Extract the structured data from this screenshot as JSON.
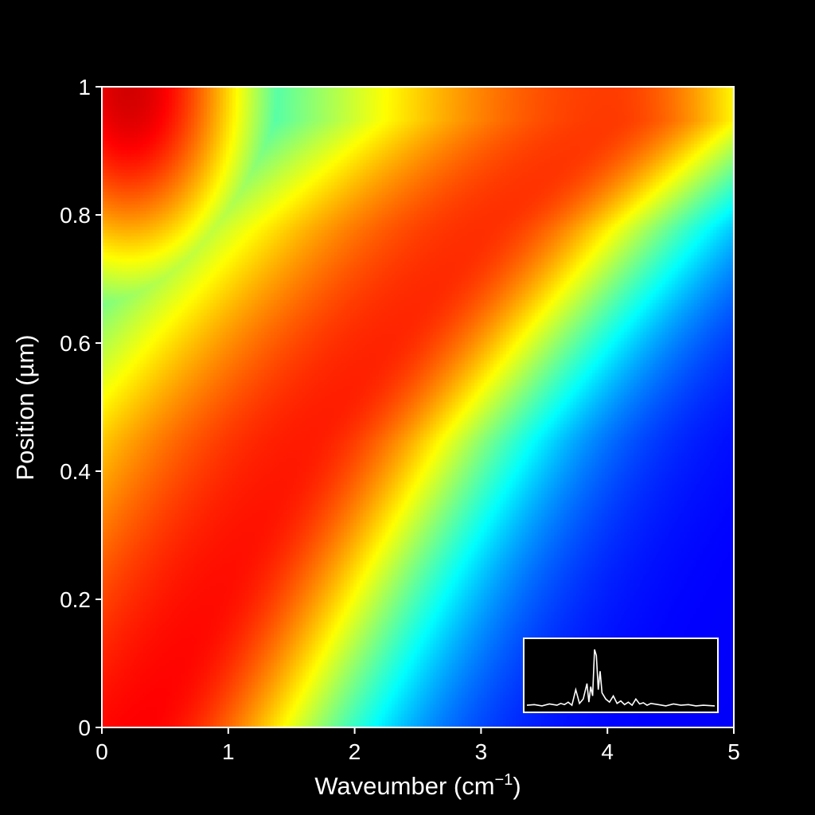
{
  "chart_data": {
    "type": "heatmap",
    "title": "",
    "xlabel": "Waveumber (cm",
    "xlabel_sup": "−1",
    "xlabel_suffix": ")",
    "ylabel": "Position (µm)",
    "xlim": [
      0,
      5
    ],
    "ylim": [
      0,
      1
    ],
    "x_ticks": [
      0,
      1,
      2,
      3,
      4,
      5
    ],
    "x_tick_labels": [
      "0",
      "1",
      "2",
      "3",
      "4",
      "5"
    ],
    "y_ticks": [
      0,
      0.2,
      0.4,
      0.6,
      0.8,
      1
    ],
    "y_tick_labels": [
      "0",
      "0.2",
      "0.4",
      "0.6",
      "0.8",
      "1"
    ],
    "grid": false,
    "colormap": "jet",
    "intensity_ridge": [
      {
        "x": 0.3,
        "y": 0.0
      },
      {
        "x": 1.0,
        "y": 0.25
      },
      {
        "x": 1.6,
        "y": 0.45
      },
      {
        "x": 2.3,
        "y": 0.62
      },
      {
        "x": 3.0,
        "y": 0.78
      },
      {
        "x": 4.0,
        "y": 0.95
      }
    ],
    "corner_peak": {
      "x": 0.2,
      "y": 1.0
    },
    "inset": {
      "type": "line",
      "description_free": true,
      "x": [
        0.0,
        0.04,
        0.08,
        0.12,
        0.16,
        0.18,
        0.2,
        0.22,
        0.24,
        0.26,
        0.28,
        0.3,
        0.32,
        0.33,
        0.34,
        0.35,
        0.36,
        0.37,
        0.38,
        0.39,
        0.4,
        0.42,
        0.44,
        0.46,
        0.48,
        0.5,
        0.52,
        0.54,
        0.56,
        0.58,
        0.6,
        0.62,
        0.64,
        0.66,
        0.7,
        0.74,
        0.78,
        0.82,
        0.86,
        0.9,
        0.94,
        1.0
      ],
      "y": [
        0.05,
        0.06,
        0.04,
        0.07,
        0.05,
        0.08,
        0.06,
        0.1,
        0.05,
        0.3,
        0.08,
        0.15,
        0.4,
        0.1,
        0.35,
        0.2,
        0.95,
        0.85,
        0.3,
        0.6,
        0.25,
        0.15,
        0.1,
        0.2,
        0.08,
        0.12,
        0.06,
        0.1,
        0.05,
        0.15,
        0.07,
        0.09,
        0.05,
        0.08,
        0.06,
        0.04,
        0.07,
        0.05,
        0.06,
        0.04,
        0.05,
        0.04
      ],
      "color": "#ffffff"
    },
    "frame_color": "#ffffff",
    "background": "#000000"
  }
}
